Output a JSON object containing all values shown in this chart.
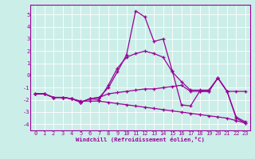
{
  "xlabel": "Windchill (Refroidissement éolien,°C)",
  "xlim": [
    -0.5,
    23.5
  ],
  "ylim": [
    -4.5,
    5.8
  ],
  "yticks": [
    -4,
    -3,
    -2,
    -1,
    0,
    1,
    2,
    3,
    4,
    5
  ],
  "xticks": [
    0,
    1,
    2,
    3,
    4,
    5,
    6,
    7,
    8,
    9,
    10,
    11,
    12,
    13,
    14,
    15,
    16,
    17,
    18,
    19,
    20,
    21,
    22,
    23
  ],
  "bg_color": "#cceee8",
  "line_color": "#990099",
  "grid_color": "#ffffff",
  "lines": [
    {
      "x": [
        0,
        1,
        2,
        3,
        4,
        5,
        6,
        7,
        8,
        9,
        10,
        11,
        12,
        13,
        14,
        15,
        16,
        17,
        18,
        19,
        20,
        21,
        22,
        23
      ],
      "y": [
        -1.5,
        -1.5,
        -1.8,
        -1.8,
        -1.9,
        -2.1,
        -2.1,
        -2.1,
        -2.2,
        -2.3,
        -2.4,
        -2.5,
        -2.6,
        -2.7,
        -2.8,
        -2.9,
        -3.0,
        -3.1,
        -3.2,
        -3.3,
        -3.4,
        -3.5,
        -3.7,
        -3.9
      ]
    },
    {
      "x": [
        0,
        1,
        2,
        3,
        4,
        5,
        6,
        7,
        8,
        9,
        10,
        11,
        12,
        13,
        14,
        15,
        16,
        17,
        18,
        19,
        20,
        21,
        22,
        23
      ],
      "y": [
        -1.5,
        -1.5,
        -1.8,
        -1.8,
        -1.9,
        -2.2,
        -1.9,
        -1.8,
        -1.5,
        -1.4,
        -1.3,
        -1.2,
        -1.1,
        -1.1,
        -1.0,
        -0.9,
        -0.8,
        -1.3,
        -1.3,
        -1.3,
        -0.2,
        -1.3,
        -1.3,
        -1.3
      ]
    },
    {
      "x": [
        0,
        1,
        2,
        3,
        4,
        5,
        6,
        7,
        8,
        9,
        10,
        11,
        12,
        13,
        14,
        15,
        16,
        17,
        18,
        19,
        20,
        21,
        22,
        23
      ],
      "y": [
        -1.5,
        -1.5,
        -1.8,
        -1.8,
        -1.9,
        -2.2,
        -1.9,
        -1.8,
        -1.0,
        0.3,
        1.7,
        5.3,
        4.8,
        2.8,
        3.0,
        0.4,
        -2.4,
        -2.5,
        -1.3,
        -1.3,
        -0.2,
        -1.3,
        -3.5,
        -3.9
      ]
    },
    {
      "x": [
        0,
        1,
        2,
        3,
        4,
        5,
        6,
        7,
        8,
        9,
        10,
        11,
        12,
        13,
        14,
        15,
        16,
        17,
        18,
        19,
        20,
        21,
        22,
        23
      ],
      "y": [
        -1.5,
        -1.5,
        -1.8,
        -1.8,
        -1.9,
        -2.2,
        -1.9,
        -2.0,
        -0.8,
        0.6,
        1.5,
        1.8,
        2.0,
        1.8,
        1.5,
        0.3,
        -0.5,
        -1.2,
        -1.2,
        -1.2,
        -0.2,
        -1.3,
        -3.4,
        -3.8
      ]
    }
  ]
}
